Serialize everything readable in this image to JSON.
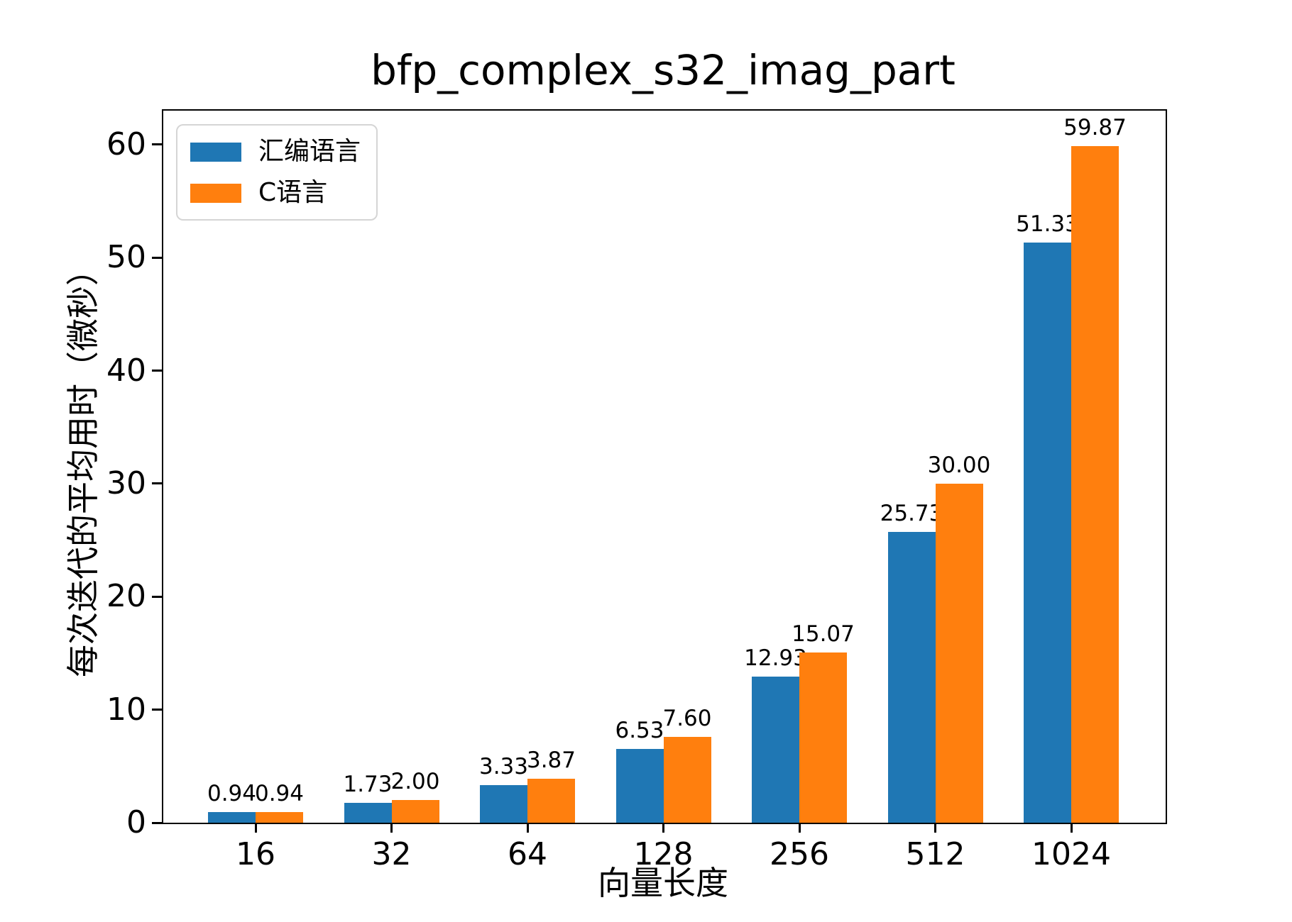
{
  "chart_data": {
    "type": "bar",
    "title": "bfp_complex_s32_imag_part",
    "xlabel": "向量长度",
    "ylabel": "每次迭代的平均用时（微秒）",
    "categories": [
      "16",
      "32",
      "64",
      "128",
      "256",
      "512",
      "1024"
    ],
    "series": [
      {
        "key": "asm",
        "name": "汇编语言",
        "color": "#1f77b4",
        "values": [
          0.94,
          1.73,
          3.33,
          6.53,
          12.93,
          25.73,
          51.33
        ],
        "labels": [
          "0.94",
          "1.73",
          "3.33",
          "6.53",
          "12.93",
          "25.73",
          "51.33"
        ]
      },
      {
        "key": "c",
        "name": "C语言",
        "color": "#ff7f0e",
        "values": [
          0.94,
          2.0,
          3.87,
          7.6,
          15.07,
          30.0,
          59.87
        ],
        "labels": [
          "0.94",
          "2.00",
          "3.87",
          "7.60",
          "15.07",
          "30.00",
          "59.87"
        ]
      }
    ],
    "yticks": [
      "0",
      "10",
      "20",
      "30",
      "40",
      "50",
      "60"
    ],
    "ytick_values": [
      0,
      10,
      20,
      30,
      40,
      50,
      60
    ],
    "ylim": [
      0,
      63
    ],
    "grid": false,
    "legend_position": "upper-left",
    "axis_color": "#000000",
    "text_color": "#000000",
    "background_color": "#ffffff"
  }
}
